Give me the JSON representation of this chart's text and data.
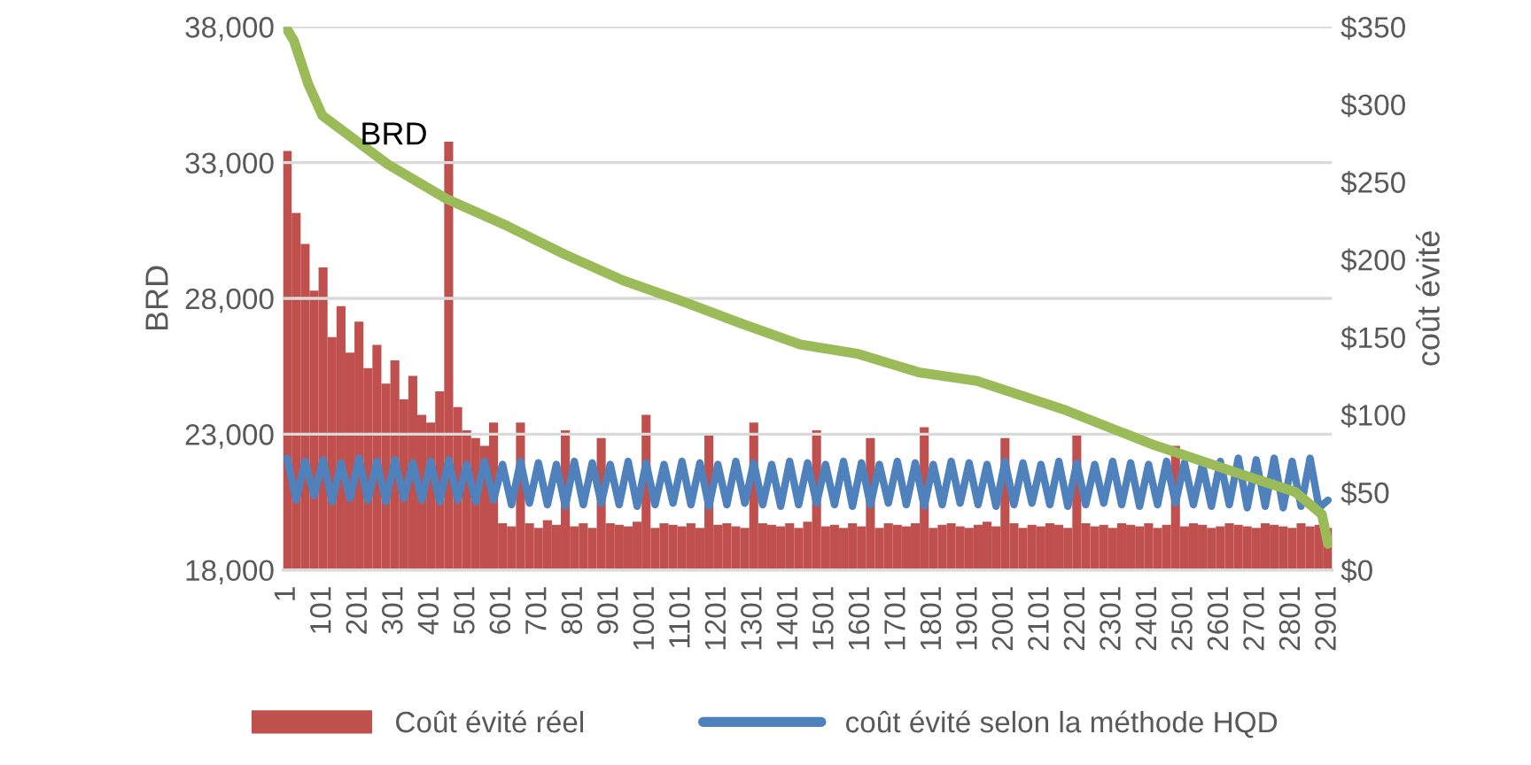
{
  "chart_data": {
    "type": "bar",
    "xlabel": null,
    "ylabel": "BRD",
    "y2label": "coût évité",
    "xlim": [
      -10,
      2912
    ],
    "xticks": [
      1,
      101,
      201,
      301,
      401,
      501,
      601,
      701,
      801,
      901,
      1001,
      1101,
      1201,
      1301,
      1401,
      1501,
      1601,
      1701,
      1801,
      1901,
      2001,
      2101,
      2201,
      2301,
      2401,
      2501,
      2601,
      2701,
      2801,
      2901
    ],
    "ylim": [
      18000,
      38000
    ],
    "yticks": [
      {
        "value": 18000,
        "label": "18,000"
      },
      {
        "value": 23000,
        "label": "23,000"
      },
      {
        "value": 28000,
        "label": "28,000"
      },
      {
        "value": 33000,
        "label": "33,000"
      },
      {
        "value": 38000,
        "label": "38,000"
      }
    ],
    "y2lim": [
      0,
      350
    ],
    "y2ticks": [
      {
        "value": 0,
        "label": "$0"
      },
      {
        "value": 50,
        "label": "$50"
      },
      {
        "value": 100,
        "label": "$100"
      },
      {
        "value": 150,
        "label": "$150"
      },
      {
        "value": 200,
        "label": "$200"
      },
      {
        "value": 250,
        "label": "$250"
      },
      {
        "value": 300,
        "label": "$300"
      },
      {
        "value": 350,
        "label": "$350"
      }
    ],
    "grid": "y",
    "legend": "bottom",
    "x": [
      1,
      26,
      51,
      76,
      101,
      126,
      151,
      176,
      201,
      226,
      251,
      276,
      301,
      326,
      351,
      376,
      401,
      426,
      451,
      476,
      501,
      526,
      551,
      576,
      601,
      626,
      651,
      676,
      701,
      726,
      751,
      776,
      801,
      826,
      851,
      876,
      901,
      926,
      951,
      976,
      1001,
      1026,
      1051,
      1076,
      1101,
      1126,
      1151,
      1176,
      1201,
      1226,
      1251,
      1276,
      1301,
      1326,
      1351,
      1376,
      1401,
      1426,
      1451,
      1476,
      1501,
      1526,
      1551,
      1576,
      1601,
      1626,
      1651,
      1676,
      1701,
      1726,
      1751,
      1776,
      1801,
      1826,
      1851,
      1876,
      1901,
      1926,
      1951,
      1976,
      2001,
      2026,
      2051,
      2076,
      2101,
      2126,
      2151,
      2176,
      2201,
      2226,
      2251,
      2276,
      2301,
      2326,
      2351,
      2376,
      2401,
      2426,
      2451,
      2476,
      2501,
      2526,
      2551,
      2576,
      2601,
      2626,
      2651,
      2676,
      2701,
      2726,
      2751,
      2776,
      2801,
      2826,
      2851,
      2876,
      2901
    ],
    "series": [
      {
        "name": "Coût évité réel",
        "axis": "y2",
        "color": "#c0504d",
        "values": [
          270,
          230,
          210,
          180,
          195,
          150,
          170,
          140,
          160,
          130,
          145,
          120,
          135,
          110,
          125,
          100,
          95,
          115,
          276,
          105,
          90,
          85,
          80,
          95,
          30,
          28,
          95,
          30,
          27,
          32,
          29,
          90,
          28,
          30,
          27,
          85,
          30,
          29,
          28,
          31,
          100,
          27,
          30,
          29,
          28,
          30,
          27,
          88,
          29,
          30,
          28,
          27,
          95,
          30,
          29,
          28,
          30,
          27,
          31,
          90,
          28,
          29,
          27,
          30,
          28,
          85,
          27,
          30,
          29,
          28,
          30,
          92,
          27,
          29,
          30,
          28,
          27,
          29,
          31,
          28,
          85,
          30,
          27,
          29,
          28,
          30,
          29,
          27,
          88,
          30,
          28,
          29,
          27,
          30,
          29,
          28,
          30,
          27,
          29,
          80,
          28,
          30,
          29,
          27,
          28,
          30,
          29,
          28,
          27,
          30,
          29,
          28,
          27,
          30,
          28,
          29,
          27
        ]
      },
      {
        "name": "coût évité selon la méthode HQD",
        "type": "line",
        "axis": "y2",
        "color": "#4f81bd",
        "values": [
          72,
          45,
          70,
          48,
          71,
          44,
          69,
          46,
          72,
          45,
          70,
          44,
          71,
          46,
          69,
          45,
          70,
          44,
          71,
          45,
          68,
          44,
          70,
          45,
          68,
          42,
          70,
          43,
          69,
          42,
          68,
          41,
          70,
          42,
          69,
          43,
          68,
          42,
          70,
          41,
          69,
          42,
          68,
          43,
          70,
          42,
          69,
          41,
          68,
          42,
          70,
          43,
          69,
          42,
          68,
          41,
          70,
          42,
          69,
          43,
          68,
          42,
          70,
          41,
          69,
          42,
          68,
          43,
          70,
          42,
          69,
          41,
          68,
          42,
          70,
          43,
          69,
          42,
          68,
          41,
          70,
          42,
          69,
          43,
          68,
          42,
          70,
          41,
          69,
          42,
          68,
          43,
          70,
          42,
          69,
          41,
          68,
          42,
          70,
          43,
          69,
          42,
          68,
          41,
          70,
          42,
          72,
          40,
          71,
          41,
          72,
          40,
          70,
          41,
          72,
          40,
          45
        ]
      },
      {
        "name": "BRD",
        "type": "line",
        "axis": "y",
        "color": "#9bbb59",
        "x": [
          1,
          20,
          60,
          99,
          281,
          444,
          607,
          774,
          937,
          1100,
          1267,
          1430,
          1593,
          1760,
          1923,
          2170,
          2416,
          2662,
          2810,
          2884,
          2901
        ],
        "values": [
          37900,
          37480,
          35880,
          34730,
          32940,
          31670,
          30710,
          29620,
          28660,
          27900,
          27070,
          26300,
          25950,
          25280,
          24960,
          23880,
          22600,
          21510,
          20870,
          20040,
          18960
        ]
      }
    ]
  }
}
